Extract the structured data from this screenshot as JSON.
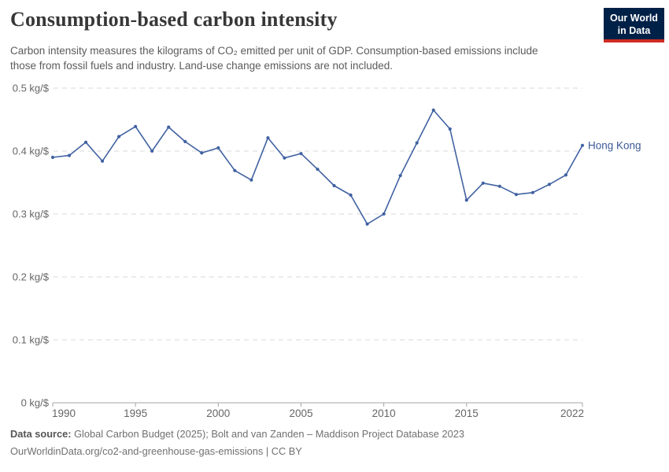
{
  "header": {
    "title": "Consumption-based carbon intensity",
    "subtitle": "Carbon intensity measures the kilograms of CO₂ emitted per unit of GDP. Consumption-based emissions include those from fossil fuels and industry. Land-use change emissions are not included.",
    "logo": {
      "line1": "Our World",
      "line2": "in Data",
      "bg_color": "#002147",
      "stripe_color": "#cf2b24",
      "text_color": "#ffffff"
    }
  },
  "chart_data": {
    "type": "line",
    "title": "Consumption-based carbon intensity",
    "unit": "kg/$",
    "x": [
      1990,
      1991,
      1992,
      1993,
      1994,
      1995,
      1996,
      1997,
      1998,
      1999,
      2000,
      2001,
      2002,
      2003,
      2004,
      2005,
      2006,
      2007,
      2008,
      2009,
      2010,
      2011,
      2012,
      2013,
      2014,
      2015,
      2016,
      2017,
      2018,
      2019,
      2020,
      2021,
      2022
    ],
    "series": [
      {
        "name": "Hong Kong",
        "color": "#4162a2",
        "label_color": "#3d5a96",
        "values": [
          0.39,
          0.393,
          0.414,
          0.384,
          0.423,
          0.439,
          0.4,
          0.438,
          0.415,
          0.397,
          0.405,
          0.369,
          0.354,
          0.421,
          0.389,
          0.396,
          0.371,
          0.345,
          0.33,
          0.284,
          0.3,
          0.361,
          0.413,
          0.465,
          0.435,
          0.322,
          0.349,
          0.344,
          0.331,
          0.334,
          0.347,
          0.362,
          0.409
        ]
      }
    ],
    "x_range": [
      1990,
      2022
    ],
    "ylim": [
      0,
      0.5
    ],
    "yticks": [
      {
        "value": 0,
        "label": "0 kg/$"
      },
      {
        "value": 0.1,
        "label": "0.1 kg/$"
      },
      {
        "value": 0.2,
        "label": "0.2 kg/$"
      },
      {
        "value": 0.3,
        "label": "0.3 kg/$"
      },
      {
        "value": 0.4,
        "label": "0.4 kg/$"
      },
      {
        "value": 0.5,
        "label": "0.5 kg/$"
      }
    ],
    "xticks": [
      {
        "value": 1990,
        "label": "1990"
      },
      {
        "value": 1995,
        "label": "1995"
      },
      {
        "value": 2000,
        "label": "2000"
      },
      {
        "value": 2005,
        "label": "2005"
      },
      {
        "value": 2010,
        "label": "2010"
      },
      {
        "value": 2015,
        "label": "2015"
      },
      {
        "value": 2022,
        "label": "2022"
      }
    ],
    "grid": {
      "horizontal": true,
      "style": "dashed",
      "color": "#dadada"
    },
    "axis_color": "#a5a5a5",
    "tick_label_color": "#666666",
    "legend": {
      "position": "end-of-line",
      "entries": [
        "Hong Kong"
      ]
    }
  },
  "footer": {
    "source_label": "Data source:",
    "source_text": "Global Carbon Budget (2025); Bolt and van Zanden – Maddison Project Database 2023",
    "link_text": "OurWorldinData.org/co2-and-greenhouse-gas-emissions | CC BY"
  }
}
